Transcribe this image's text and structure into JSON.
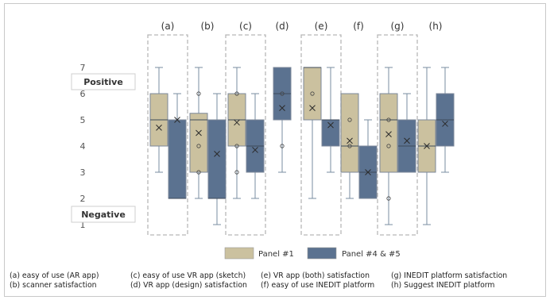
{
  "chart_data": {
    "type": "box",
    "ylim": [
      1,
      7
    ],
    "yticks": [
      1,
      2,
      3,
      4,
      5,
      6,
      7
    ],
    "group_labels": [
      "(a)",
      "(b)",
      "(c)",
      "(d)",
      "(e)",
      "(f)",
      "(g)",
      "(h)"
    ],
    "highlighted_groups": [
      "(a)",
      "(c)",
      "(e)",
      "(g)"
    ],
    "scale_labels": {
      "positive": "Positive",
      "negative": "Negative"
    },
    "series": [
      {
        "name": "Panel #1",
        "color": "#cbc19f"
      },
      {
        "name": "Panel #4 & #5",
        "color": "#5b7290"
      }
    ],
    "boxes": [
      {
        "group": "(a)",
        "series": "Panel #1",
        "min": 3,
        "q1": 4,
        "median": 5,
        "q3": 6,
        "max": 7,
        "mean": 4.7,
        "points": []
      },
      {
        "group": "(a)",
        "series": "Panel #4 & #5",
        "min": 2,
        "q1": 2,
        "median": 2,
        "q3": 5,
        "max": 6,
        "mean": 5,
        "points": []
      },
      {
        "group": "(b)",
        "series": "Panel #1",
        "min": 2,
        "q1": 3,
        "median": 5,
        "q3": 5.25,
        "max": 7,
        "mean": 4.5,
        "points": [
          3,
          4,
          6
        ]
      },
      {
        "group": "(b)",
        "series": "Panel #4 & #5",
        "min": 1,
        "q1": 2,
        "median": 2,
        "q3": 5,
        "max": 6,
        "mean": 3.7,
        "points": []
      },
      {
        "group": "(c)",
        "series": "Panel #1",
        "min": 2,
        "q1": 4,
        "median": 5,
        "q3": 6,
        "max": 7,
        "mean": 4.9,
        "points": [
          3,
          4,
          6
        ]
      },
      {
        "group": "(c)",
        "series": "Panel #4 & #5",
        "min": 2,
        "q1": 3,
        "median": 4,
        "q3": 5,
        "max": 6,
        "mean": 3.85,
        "points": []
      },
      {
        "group": "(d)",
        "series": "Panel #4 & #5",
        "min": 3,
        "q1": 5,
        "median": 6,
        "q3": 7,
        "max": 7,
        "mean": 5.45,
        "points": [
          4,
          6
        ]
      },
      {
        "group": "(e)",
        "series": "Panel #1",
        "min": 2,
        "q1": 5,
        "median": 7,
        "q3": 7,
        "max": 7,
        "mean": 5.45,
        "points": [
          6
        ]
      },
      {
        "group": "(e)",
        "series": "Panel #4 & #5",
        "min": 3,
        "q1": 4,
        "median": 5,
        "q3": 5,
        "max": 7,
        "mean": 4.8,
        "points": []
      },
      {
        "group": "(f)",
        "series": "Panel #1",
        "min": 2,
        "q1": 3,
        "median": 4,
        "q3": 6,
        "max": 6,
        "mean": 4.2,
        "points": [
          4,
          5
        ]
      },
      {
        "group": "(f)",
        "series": "Panel #4 & #5",
        "min": 2,
        "q1": 2,
        "median": 3,
        "q3": 4,
        "max": 5,
        "mean": 3,
        "points": []
      },
      {
        "group": "(g)",
        "series": "Panel #1",
        "min": 1,
        "q1": 3,
        "median": 5,
        "q3": 6,
        "max": 7,
        "mean": 4.45,
        "points": [
          2,
          4,
          5
        ]
      },
      {
        "group": "(g)",
        "series": "Panel #4 & #5",
        "min": 3,
        "q1": 3,
        "median": 4,
        "q3": 5,
        "max": 6,
        "mean": 4.2,
        "points": []
      },
      {
        "group": "(h)",
        "series": "Panel #1",
        "min": 1,
        "q1": 3,
        "median": 4,
        "q3": 5,
        "max": 7,
        "mean": 4,
        "points": []
      },
      {
        "group": "(h)",
        "series": "Panel #4 & #5",
        "min": 3,
        "q1": 4,
        "median": 5,
        "q3": 6,
        "max": 7,
        "mean": 4.85,
        "points": []
      }
    ],
    "footnotes": [
      "(a) easy of use (AR app)",
      "(b) scanner satisfaction",
      "(c) easy of use VR app (sketch)",
      "(d) VR app (design) satisfaction",
      "(e) VR app (both) satisfaction",
      "(f) easy of use INEDIT platform",
      "(g) INEDIT platform satisfaction",
      "(h) Suggest INEDIT platform"
    ]
  }
}
